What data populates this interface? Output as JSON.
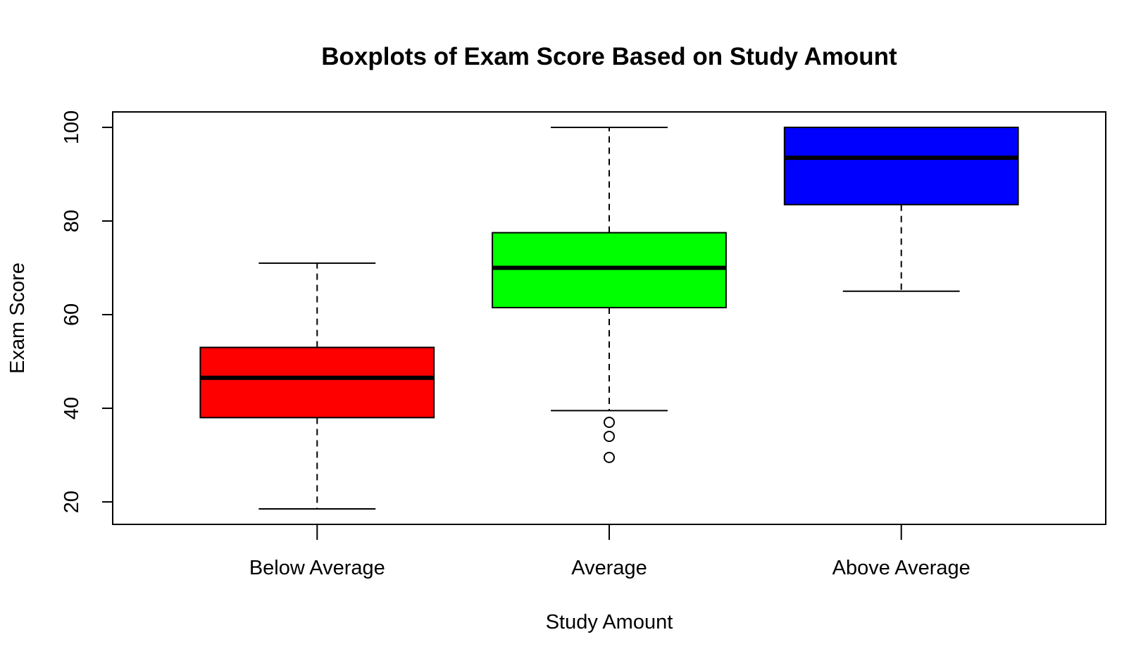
{
  "chart_data": {
    "type": "boxplot",
    "title": "Boxplots of Exam Score Based on Study Amount",
    "xlabel": "Study Amount",
    "ylabel": "Exam Score",
    "ylim": [
      15.2,
      103.3
    ],
    "yticks": [
      20,
      40,
      60,
      80,
      100
    ],
    "grid": false,
    "legend": "none",
    "categories": [
      "Below Average",
      "Average",
      "Above Average"
    ],
    "boxes": [
      {
        "category": "Below Average",
        "whisker_low": 18.5,
        "q1": 38.0,
        "median": 46.5,
        "q3": 53.0,
        "whisker_high": 71.0,
        "outliers": [],
        "color": "#ff0000"
      },
      {
        "category": "Average",
        "whisker_low": 39.5,
        "q1": 61.5,
        "median": 70.0,
        "q3": 77.5,
        "whisker_high": 100.0,
        "outliers": [
          37.0,
          34.0,
          29.5
        ],
        "color": "#00ff00"
      },
      {
        "category": "Above Average",
        "whisker_low": 65.0,
        "q1": 83.5,
        "median": 93.5,
        "q3": 100.0,
        "whisker_high": 100.0,
        "outliers": [],
        "color": "#0000ff"
      }
    ]
  }
}
